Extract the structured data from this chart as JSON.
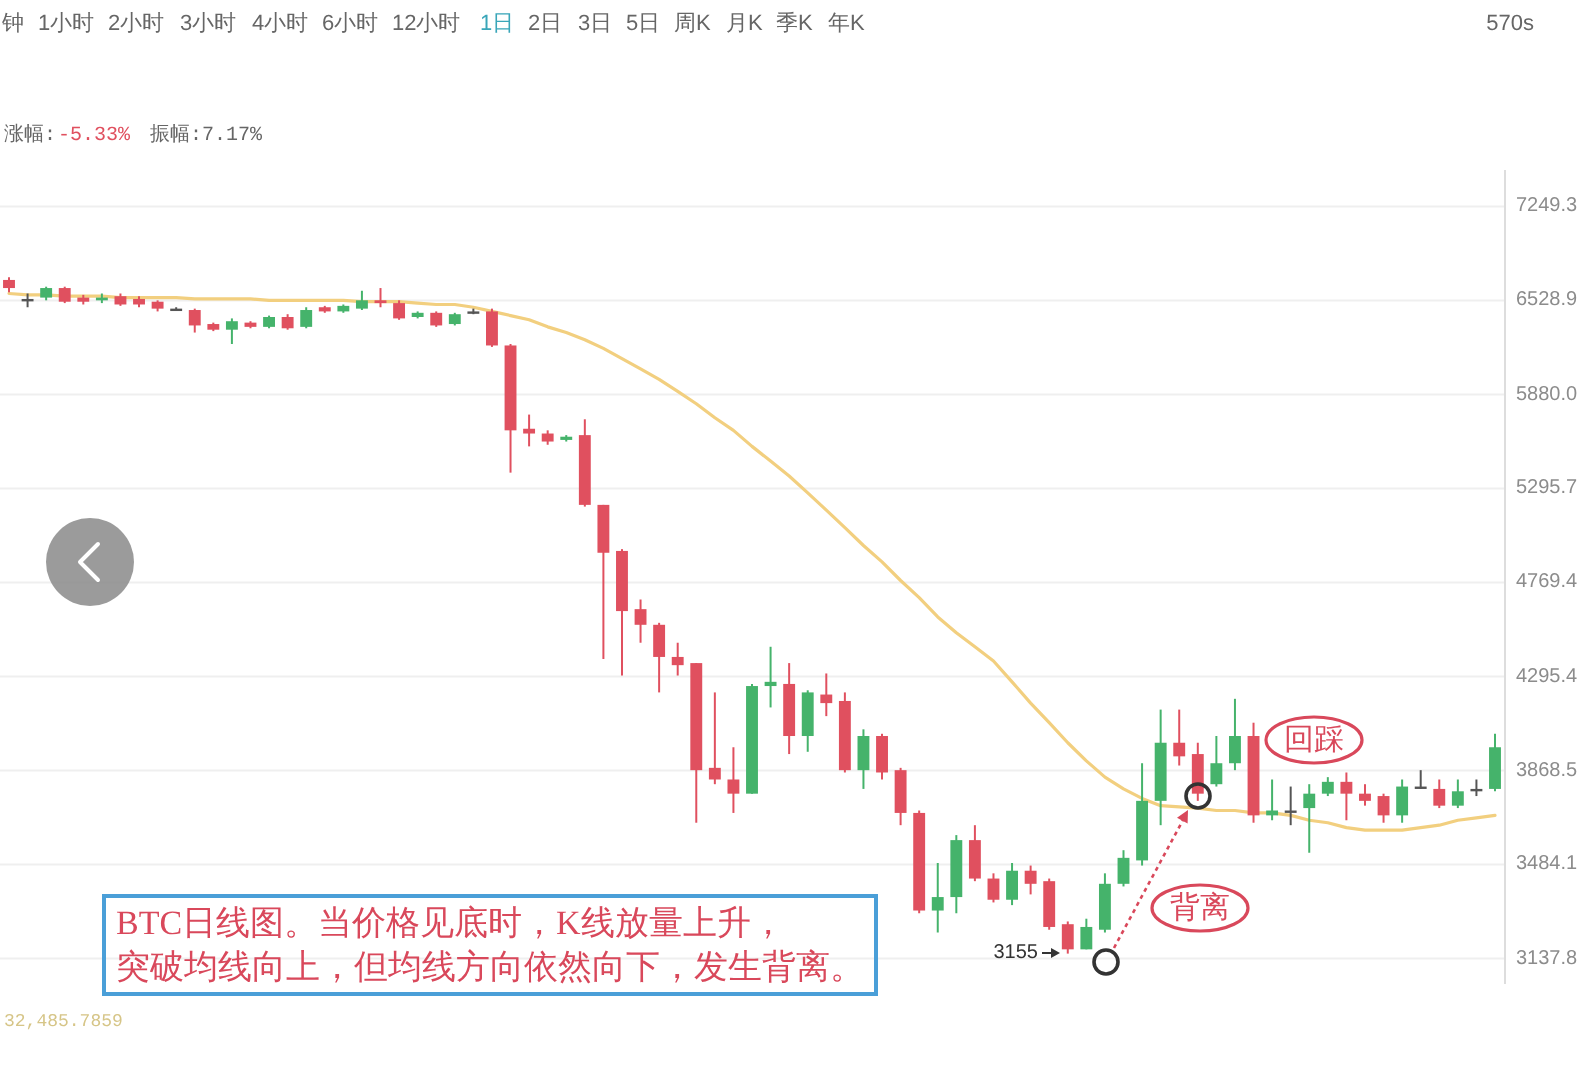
{
  "chart_data": {
    "type": "candlestick",
    "categories": [
      null,
      null,
      null,
      null,
      null,
      null,
      null,
      null,
      null,
      null,
      null,
      null,
      null,
      null,
      null,
      null,
      null,
      null,
      null,
      null,
      null,
      null,
      null,
      null,
      null,
      null,
      null,
      null,
      null,
      null,
      null,
      null,
      null,
      null,
      null,
      null,
      null,
      null,
      null,
      null,
      null,
      null,
      null,
      null,
      null,
      null,
      null,
      null,
      null,
      null,
      null,
      null,
      null,
      null,
      null,
      null,
      null,
      null,
      null,
      null,
      null,
      null,
      null,
      null,
      null,
      null,
      null,
      null,
      null,
      null,
      null,
      null,
      null,
      null,
      null,
      null,
      null,
      null,
      null,
      null,
      null
    ],
    "ohlc": [
      [
        6680,
        6700,
        6590,
        6620
      ],
      [
        6540,
        6580,
        6480,
        6540
      ],
      [
        6550,
        6630,
        6530,
        6620
      ],
      [
        6620,
        6630,
        6510,
        6520
      ],
      [
        6550,
        6570,
        6500,
        6520
      ],
      [
        6530,
        6580,
        6510,
        6550
      ],
      [
        6560,
        6580,
        6490,
        6500
      ],
      [
        6540,
        6560,
        6480,
        6500
      ],
      [
        6520,
        6530,
        6450,
        6470
      ],
      [
        6470,
        6480,
        6460,
        6470
      ],
      [
        6460,
        6470,
        6300,
        6350
      ],
      [
        6360,
        6370,
        6310,
        6320
      ],
      [
        6320,
        6400,
        6220,
        6380
      ],
      [
        6370,
        6380,
        6330,
        6340
      ],
      [
        6340,
        6420,
        6330,
        6410
      ],
      [
        6410,
        6430,
        6320,
        6330
      ],
      [
        6340,
        6480,
        6330,
        6460
      ],
      [
        6480,
        6490,
        6440,
        6450
      ],
      [
        6450,
        6500,
        6440,
        6490
      ],
      [
        6470,
        6600,
        6460,
        6530
      ],
      [
        6530,
        6620,
        6480,
        6510
      ],
      [
        6510,
        6530,
        6390,
        6400
      ],
      [
        6410,
        6450,
        6400,
        6440
      ],
      [
        6440,
        6450,
        6340,
        6350
      ],
      [
        6360,
        6440,
        6350,
        6430
      ],
      [
        6450,
        6470,
        6430,
        6450
      ],
      [
        6450,
        6470,
        6200,
        6210
      ],
      [
        6210,
        6220,
        5390,
        5650
      ],
      [
        5660,
        5750,
        5550,
        5630
      ],
      [
        5630,
        5650,
        5560,
        5580
      ],
      [
        5590,
        5620,
        5580,
        5610
      ],
      [
        5620,
        5720,
        5190,
        5200
      ],
      [
        5200,
        5200,
        4380,
        4930
      ],
      [
        4940,
        4950,
        4300,
        4620
      ],
      [
        4630,
        4680,
        4460,
        4550
      ],
      [
        4550,
        4560,
        4220,
        4390
      ],
      [
        4390,
        4460,
        4300,
        4350
      ],
      [
        4360,
        4360,
        3650,
        3870
      ],
      [
        3880,
        4220,
        3810,
        3830
      ],
      [
        3830,
        3970,
        3690,
        3770
      ],
      [
        3770,
        4260,
        3770,
        4250
      ],
      [
        4250,
        4440,
        4150,
        4270
      ],
      [
        4260,
        4360,
        3940,
        4020
      ],
      [
        4020,
        4230,
        3950,
        4220
      ],
      [
        4210,
        4310,
        4110,
        4170
      ],
      [
        4180,
        4220,
        3860,
        3870
      ],
      [
        3870,
        4050,
        3790,
        4020
      ],
      [
        4020,
        4030,
        3830,
        3860
      ],
      [
        3870,
        3880,
        3640,
        3690
      ],
      [
        3690,
        3700,
        3300,
        3310
      ],
      [
        3310,
        3490,
        3230,
        3360
      ],
      [
        3360,
        3600,
        3300,
        3580
      ],
      [
        3580,
        3640,
        3420,
        3430
      ],
      [
        3430,
        3450,
        3340,
        3350
      ],
      [
        3350,
        3490,
        3330,
        3460
      ],
      [
        3460,
        3480,
        3370,
        3410
      ],
      [
        3420,
        3430,
        3240,
        3250
      ],
      [
        3260,
        3270,
        3155,
        3170
      ],
      [
        3170,
        3280,
        3170,
        3250
      ],
      [
        3240,
        3450,
        3230,
        3410
      ],
      [
        3410,
        3540,
        3400,
        3510
      ],
      [
        3500,
        3900,
        3480,
        3740
      ],
      [
        3740,
        4140,
        3640,
        3990
      ],
      [
        3990,
        4140,
        3890,
        3930
      ],
      [
        3940,
        3990,
        3740,
        3770
      ],
      [
        3810,
        4020,
        3800,
        3900
      ],
      [
        3900,
        4190,
        3870,
        4020
      ],
      [
        4020,
        4080,
        3650,
        3680
      ],
      [
        3680,
        3830,
        3660,
        3700
      ],
      [
        3700,
        3800,
        3640,
        3700
      ],
      [
        3710,
        3810,
        3530,
        3770
      ],
      [
        3770,
        3840,
        3760,
        3820
      ],
      [
        3820,
        3860,
        3660,
        3770
      ],
      [
        3770,
        3810,
        3720,
        3740
      ],
      [
        3760,
        3770,
        3650,
        3680
      ],
      [
        3680,
        3830,
        3650,
        3800
      ],
      [
        3800,
        3870,
        3790,
        3800
      ],
      [
        3790,
        3830,
        3710,
        3720
      ],
      [
        3720,
        3830,
        3710,
        3780
      ],
      [
        3790,
        3830,
        3760,
        3790
      ],
      [
        3790,
        4030,
        3780,
        3970
      ]
    ],
    "colors": [
      "#e0505f",
      "#555555",
      "#45b36b",
      "#e0505f",
      "#e0505f",
      "#45b36b",
      "#e0505f",
      "#e0505f",
      "#e0505f",
      "#555555",
      "#e0505f",
      "#e0505f",
      "#45b36b",
      "#e0505f",
      "#45b36b",
      "#e0505f",
      "#45b36b",
      "#e0505f",
      "#45b36b",
      "#45b36b",
      "#e0505f",
      "#e0505f",
      "#45b36b",
      "#e0505f",
      "#45b36b",
      "#555555",
      "#e0505f",
      "#e0505f",
      "#e0505f",
      "#e0505f",
      "#45b36b",
      "#e0505f",
      "#e0505f",
      "#e0505f",
      "#e0505f",
      "#e0505f",
      "#e0505f",
      "#e0505f",
      "#e0505f",
      "#e0505f",
      "#45b36b",
      "#45b36b",
      "#e0505f",
      "#45b36b",
      "#e0505f",
      "#e0505f",
      "#45b36b",
      "#e0505f",
      "#e0505f",
      "#e0505f",
      "#45b36b",
      "#45b36b",
      "#e0505f",
      "#e0505f",
      "#45b36b",
      "#e0505f",
      "#e0505f",
      "#e0505f",
      "#45b36b",
      "#45b36b",
      "#45b36b",
      "#45b36b",
      "#45b36b",
      "#e0505f",
      "#e0505f",
      "#45b36b",
      "#45b36b",
      "#e0505f",
      "#45b36b",
      "#555555",
      "#45b36b",
      "#45b36b",
      "#e0505f",
      "#e0505f",
      "#e0505f",
      "#45b36b",
      "#555555",
      "#e0505f",
      "#45b36b",
      "#555555",
      "#45b36b"
    ],
    "series": [
      {
        "type": "line",
        "color": "#f2cf7f",
        "values": [
          6580,
          6570,
          6570,
          6560,
          6560,
          6560,
          6550,
          6550,
          6550,
          6550,
          6540,
          6540,
          6540,
          6540,
          6530,
          6530,
          6530,
          6530,
          6530,
          6520,
          6520,
          6520,
          6510,
          6500,
          6500,
          6480,
          6450,
          6420,
          6390,
          6340,
          6300,
          6250,
          6190,
          6120,
          6050,
          5980,
          5900,
          5820,
          5730,
          5650,
          5550,
          5460,
          5370,
          5270,
          5170,
          5070,
          4970,
          4880,
          4780,
          4690,
          4590,
          4510,
          4440,
          4370,
          4270,
          4170,
          4080,
          3990,
          3910,
          3840,
          3790,
          3750,
          3720,
          3715,
          3710,
          3700,
          3700,
          3690,
          3690,
          3680,
          3660,
          3650,
          3630,
          3620,
          3620,
          3620,
          3630,
          3640,
          3660,
          3670,
          3680
        ]
      }
    ],
    "log": true,
    "ylim": [
      3050,
      7550
    ],
    "yticks": [
      7249.3,
      6528.9,
      {
        "value": 5880,
        "label": "5880.0"
      },
      5295.7,
      4769.4,
      4295.4,
      3868.5,
      3484.1,
      3137.8
    ],
    "grid": "y",
    "annotations": [
      "钟",
      "1小时",
      "2小时",
      "3小时",
      "4小时",
      "6小时",
      "12小时",
      "1日",
      "2日",
      "3日",
      "5日",
      "周K",
      "月K",
      "季K",
      "年K",
      "570s",
      "涨幅:",
      "-5.33%",
      "振幅:7.17%",
      "回踩",
      "背离",
      "3155",
      "BTC日线图。当价格见底时，K线放量上升，",
      "突破均线向上，但均线方向依然向下，发生背离。",
      "32,485.7859"
    ]
  }
}
